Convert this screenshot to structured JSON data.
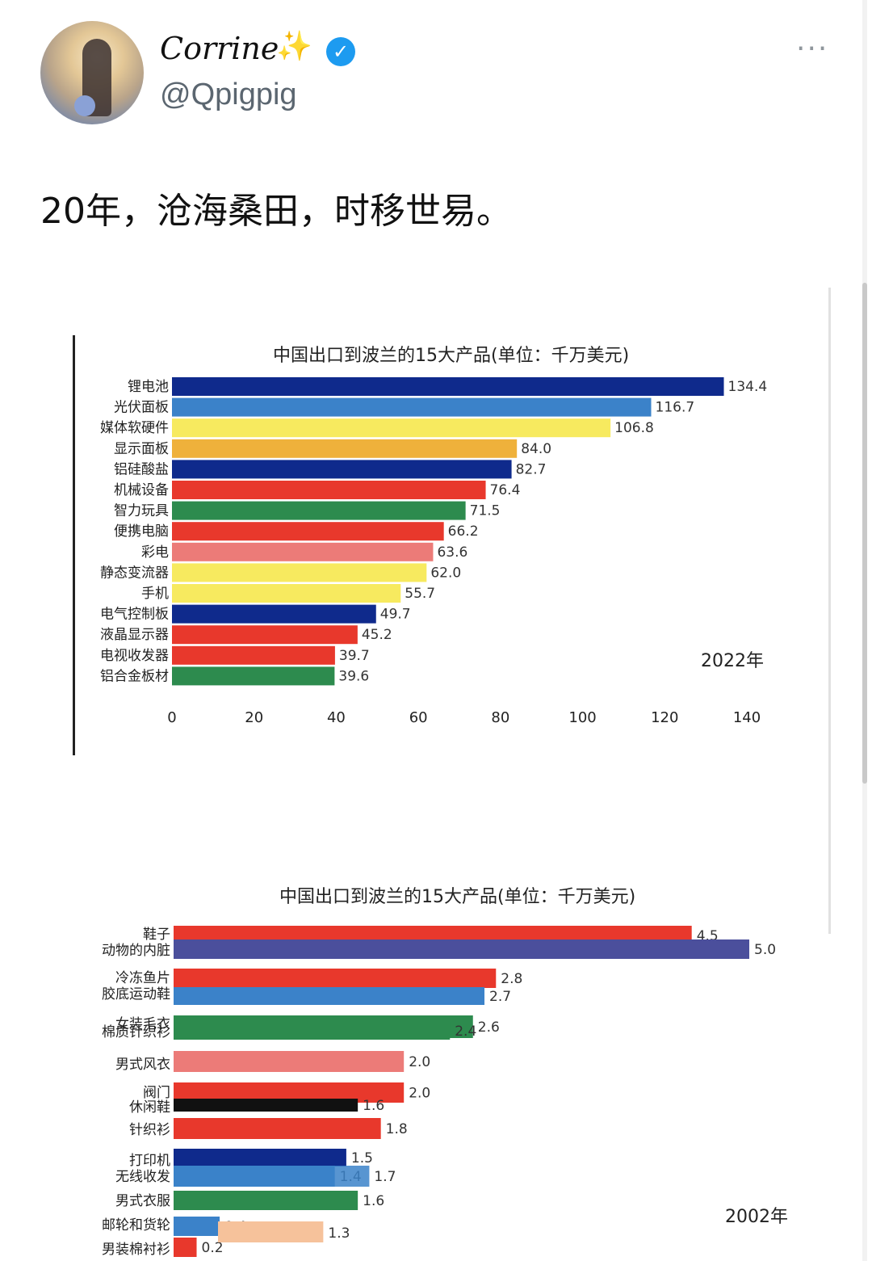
{
  "post": {
    "author_name": "Corrine",
    "sparkle_icon": "✨",
    "verified_icon": "✓",
    "handle": "@Qpigpig",
    "more_icon": "···",
    "text": "20年，沧海桑田，时移世易。"
  },
  "colors": {
    "navy": "#0f2a8c",
    "blue": "#3b82c9",
    "yellow": "#f7ea5f",
    "orange": "#efb13b",
    "red": "#e8382c",
    "green": "#2d8b4e",
    "pink": "#ec7b78",
    "black": "#111111",
    "peach": "#f6c29b",
    "indigo": "#4b4f9c"
  },
  "chart_data": [
    {
      "type": "bar",
      "orientation": "horizontal",
      "title": "中国出口到波兰的15大产品(单位：千万美元)",
      "annotation": "2022年",
      "categories": [
        "锂电池",
        "光伏面板",
        "媒体软硬件",
        "显示面板",
        "铝硅酸盐",
        "机械设备",
        "智力玩具",
        "便携电脑",
        "彩电",
        "静态变流器",
        "手机",
        "电气控制板",
        "液晶显示器",
        "电视收发器",
        "铝合金板材"
      ],
      "values": [
        134.4,
        116.7,
        106.8,
        84.0,
        82.7,
        76.4,
        71.5,
        66.2,
        63.6,
        62.0,
        55.7,
        49.7,
        45.2,
        39.7,
        39.6
      ],
      "value_labels": [
        "134.4",
        "116.7",
        "106.8",
        "84.0",
        "82.7",
        "76.4",
        "71.5",
        "66.2",
        "63.6",
        "62.0",
        "55.7",
        "49.7",
        "45.2",
        "39.7",
        "39.6"
      ],
      "bar_colors": [
        "navy",
        "blue",
        "yellow",
        "orange",
        "navy",
        "red",
        "green",
        "red",
        "pink",
        "yellow",
        "yellow",
        "navy",
        "red",
        "red",
        "green"
      ],
      "x_ticks": [
        "0",
        "20",
        "40",
        "60",
        "80",
        "100",
        "120",
        "140"
      ],
      "xlim": [
        0,
        140
      ]
    },
    {
      "type": "bar",
      "orientation": "horizontal",
      "title": "中国出口到波兰的15大产品(单位：千万美元)",
      "annotation": "2002年",
      "categories": [
        "鞋子",
        "动物的内脏",
        "冷冻鱼片",
        "胶底运动鞋",
        "女装毛衣",
        "棉质针织衫",
        "男式风衣",
        "阀门",
        "休闲鞋",
        "针织衫",
        "打印机",
        "无线收发",
        "男式衣服",
        "邮轮和货轮",
        "男装棉衬衫"
      ],
      "values": [
        4.5,
        5.0,
        2.8,
        2.7,
        2.6,
        2.4,
        2.0,
        2.0,
        1.6,
        1.8,
        1.5,
        1.4,
        1.6,
        0.4,
        0.2
      ],
      "value_labels": [
        "4.5",
        "5.0",
        "2.8",
        "2.7",
        "2.6",
        "2.4",
        "2.0",
        "2.0",
        "1.6",
        "1.8",
        "1.5",
        "1.4",
        "1.6",
        "0.4",
        "0.2"
      ],
      "bar_colors": [
        "red",
        "indigo",
        "red",
        "blue",
        "green",
        "green",
        "pink",
        "red",
        "black",
        "red",
        "navy",
        "blue",
        "green",
        "blue",
        "red"
      ],
      "extra_labels": [
        "1.7",
        "1.3"
      ],
      "xlim": [
        0,
        5.0
      ]
    }
  ]
}
